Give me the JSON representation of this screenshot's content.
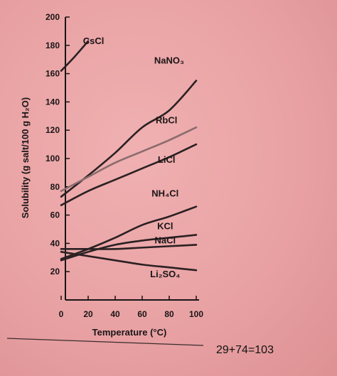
{
  "chart_data": {
    "type": "line",
    "xlabel": "Temperature (°C)",
    "ylabel": "Solubility (g salt/100 g H₂O)",
    "xlim": [
      0,
      100
    ],
    "ylim": [
      0,
      200
    ],
    "x_ticks": [
      0,
      20,
      40,
      60,
      80,
      100
    ],
    "y_ticks": [
      20,
      40,
      60,
      80,
      100,
      120,
      140,
      160,
      180,
      200
    ],
    "grid": false,
    "series": [
      {
        "name": "CsCl",
        "x": [
          0,
          10,
          20
        ],
        "y": [
          162,
          172,
          183
        ],
        "color": "#2a2022"
      },
      {
        "name": "NaNO₃",
        "x": [
          0,
          20,
          40,
          60,
          80,
          100
        ],
        "y": [
          73,
          88,
          104,
          122,
          134,
          155
        ],
        "color": "#2a2022"
      },
      {
        "name": "RbCl",
        "x": [
          0,
          20,
          40,
          60,
          80,
          100
        ],
        "y": [
          77,
          87,
          97,
          105,
          113,
          122
        ],
        "color": "#8a6c6e"
      },
      {
        "name": "LiCl",
        "x": [
          0,
          20,
          40,
          60,
          80,
          100
        ],
        "y": [
          67,
          77,
          85,
          93,
          101,
          110
        ],
        "color": "#2a2022"
      },
      {
        "name": "NH₄Cl",
        "x": [
          0,
          20,
          40,
          60,
          80,
          100
        ],
        "y": [
          29,
          36,
          44,
          53,
          59,
          66
        ],
        "color": "#2a2022"
      },
      {
        "name": "KCl",
        "x": [
          0,
          20,
          40,
          60,
          80,
          100
        ],
        "y": [
          28,
          34,
          39,
          42,
          44,
          46
        ],
        "color": "#2a2022"
      },
      {
        "name": "NaCl",
        "x": [
          0,
          20,
          40,
          60,
          80,
          100
        ],
        "y": [
          36,
          36,
          36,
          37,
          38,
          39
        ],
        "color": "#2a2022"
      },
      {
        "name": "Li₂SO₄",
        "x": [
          0,
          20,
          40,
          60,
          80,
          100
        ],
        "y": [
          34,
          31,
          28,
          25,
          23,
          21
        ],
        "color": "#2a2022"
      }
    ]
  },
  "note": "29+74=103"
}
